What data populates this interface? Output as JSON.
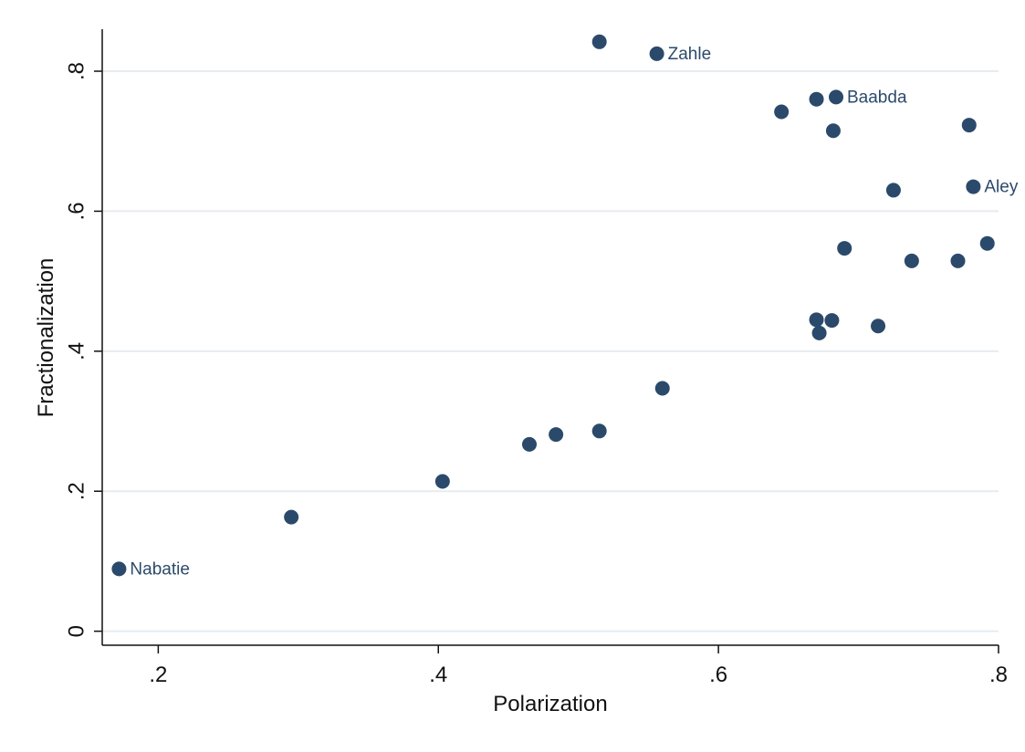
{
  "chart_data": {
    "type": "scatter",
    "xlabel": "Polarization",
    "ylabel": "Fractionalization",
    "xlim": [
      0.16,
      0.8
    ],
    "ylim": [
      -0.02,
      0.86
    ],
    "xticks": [
      {
        "value": 0.2,
        "label": ".2"
      },
      {
        "value": 0.4,
        "label": ".4"
      },
      {
        "value": 0.6,
        "label": ".6"
      },
      {
        "value": 0.8,
        "label": ".8"
      }
    ],
    "yticks": [
      {
        "value": 0,
        "label": "0"
      },
      {
        "value": 0.2,
        "label": ".2"
      },
      {
        "value": 0.4,
        "label": ".4"
      },
      {
        "value": 0.6,
        "label": ".6"
      },
      {
        "value": 0.8,
        "label": ".8"
      }
    ],
    "grid": "horizontal",
    "legend": "none",
    "colors": {
      "marker": "#2b4a6b",
      "label": "#2b4a6b",
      "grid": "#e6ebef",
      "axis": "#111111"
    },
    "points": [
      {
        "x": 0.172,
        "y": 0.089,
        "label": "Nabatie"
      },
      {
        "x": 0.295,
        "y": 0.163
      },
      {
        "x": 0.403,
        "y": 0.214
      },
      {
        "x": 0.465,
        "y": 0.267
      },
      {
        "x": 0.484,
        "y": 0.281
      },
      {
        "x": 0.515,
        "y": 0.286
      },
      {
        "x": 0.515,
        "y": 0.842
      },
      {
        "x": 0.556,
        "y": 0.825,
        "label": "Zahle"
      },
      {
        "x": 0.56,
        "y": 0.347
      },
      {
        "x": 0.645,
        "y": 0.742
      },
      {
        "x": 0.67,
        "y": 0.76
      },
      {
        "x": 0.684,
        "y": 0.763,
        "label": "Baabda"
      },
      {
        "x": 0.682,
        "y": 0.715
      },
      {
        "x": 0.67,
        "y": 0.445
      },
      {
        "x": 0.672,
        "y": 0.426
      },
      {
        "x": 0.681,
        "y": 0.444
      },
      {
        "x": 0.69,
        "y": 0.547
      },
      {
        "x": 0.714,
        "y": 0.436
      },
      {
        "x": 0.725,
        "y": 0.63
      },
      {
        "x": 0.738,
        "y": 0.529
      },
      {
        "x": 0.771,
        "y": 0.529
      },
      {
        "x": 0.779,
        "y": 0.723
      },
      {
        "x": 0.782,
        "y": 0.635,
        "label": "Aley"
      },
      {
        "x": 0.792,
        "y": 0.554
      }
    ]
  }
}
